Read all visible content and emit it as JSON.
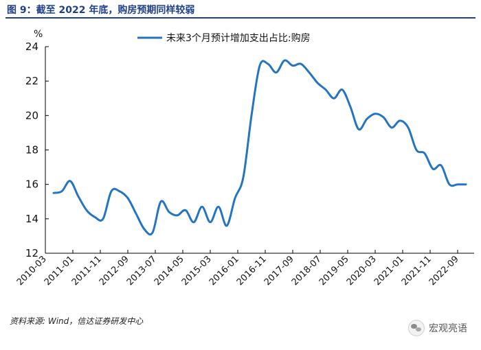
{
  "figure": {
    "title": "图 9：截至 2022 年底，购房预期同样较弱",
    "source": "资料来源: Wind，信达证券研发中心",
    "watermark": "宏观亮语",
    "watermark_icon": "wechat-icon"
  },
  "colors": {
    "line": "#2474c2",
    "title": "#1f3f8a",
    "axis": "#000000"
  },
  "chart_data": {
    "type": "line",
    "ylabel": "%",
    "ylim": [
      12,
      24
    ],
    "yticks": [
      12,
      14,
      16,
      18,
      20,
      22,
      24
    ],
    "xlim": [
      "2010-03",
      "2023-03"
    ],
    "xticks": [
      "2010-03",
      "2011-01",
      "2011-11",
      "2012-09",
      "2013-07",
      "2014-05",
      "2015-03",
      "2016-01",
      "2016-11",
      "2017-09",
      "2018-07",
      "2019-05",
      "2020-03",
      "2021-01",
      "2021-11",
      "2022-09"
    ],
    "grid": false,
    "legend_position": "top-center",
    "series": [
      {
        "name": "未来3个月预计增加支出占比:购房",
        "x": [
          "2010-06",
          "2010-09",
          "2010-12",
          "2011-03",
          "2011-06",
          "2011-09",
          "2011-12",
          "2012-03",
          "2012-06",
          "2012-09",
          "2012-12",
          "2013-03",
          "2013-06",
          "2013-09",
          "2013-12",
          "2014-03",
          "2014-06",
          "2014-09",
          "2014-12",
          "2015-03",
          "2015-06",
          "2015-09",
          "2015-12",
          "2016-03",
          "2016-06",
          "2016-09",
          "2016-12",
          "2017-03",
          "2017-06",
          "2017-09",
          "2017-12",
          "2018-03",
          "2018-06",
          "2018-09",
          "2018-12",
          "2019-03",
          "2019-06",
          "2019-09",
          "2019-12",
          "2020-03",
          "2020-06",
          "2020-09",
          "2020-12",
          "2021-03",
          "2021-06",
          "2021-09",
          "2021-12",
          "2022-03",
          "2022-06",
          "2022-09",
          "2022-12"
        ],
        "values": [
          15.5,
          15.6,
          16.2,
          15.3,
          14.5,
          14.1,
          14.0,
          15.6,
          15.6,
          15.2,
          14.3,
          13.4,
          13.2,
          15.0,
          14.4,
          14.2,
          14.5,
          13.8,
          14.7,
          13.8,
          14.7,
          13.6,
          15.2,
          16.4,
          20.0,
          22.9,
          23.0,
          22.5,
          23.2,
          22.9,
          23.0,
          22.5,
          21.9,
          21.5,
          21.0,
          21.5,
          20.5,
          19.2,
          19.8,
          20.1,
          19.9,
          19.3,
          19.7,
          19.3,
          18.0,
          17.8,
          16.9,
          17.1,
          16.0,
          16.0,
          16.0
        ]
      }
    ]
  }
}
